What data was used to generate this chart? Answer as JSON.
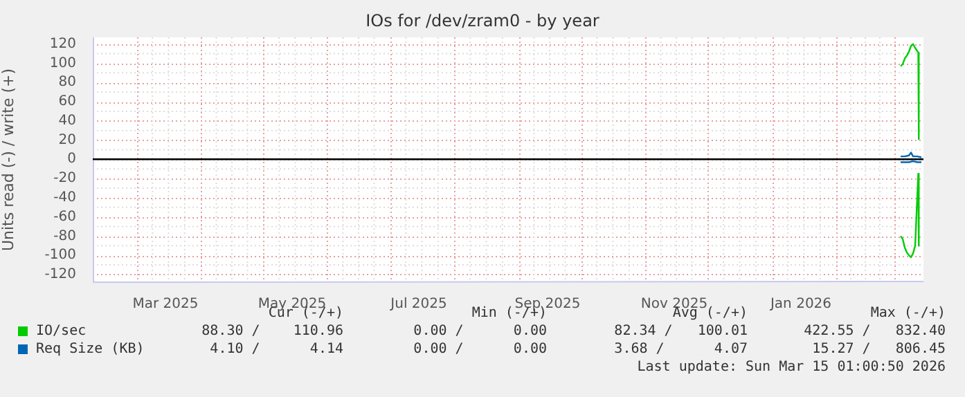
{
  "chart_data": {
    "type": "line",
    "title": "IOs for /dev/zram0 - by year",
    "ylabel": "Units read (-) / write (+)",
    "xlim": [
      "2025-02-08",
      "2026-03-15"
    ],
    "xticks": [
      {
        "value": "2025-03-01",
        "label": null
      },
      {
        "value": "2025-03-15",
        "label": "Mar 2025"
      },
      {
        "value": "2025-04-01",
        "label": null
      },
      {
        "value": "2025-05-01",
        "label": null
      },
      {
        "value": "2025-05-15",
        "label": "May 2025"
      },
      {
        "value": "2025-06-01",
        "label": null
      },
      {
        "value": "2025-07-01",
        "label": null
      },
      {
        "value": "2025-07-15",
        "label": "Jul 2025"
      },
      {
        "value": "2025-08-01",
        "label": null
      },
      {
        "value": "2025-09-01",
        "label": null
      },
      {
        "value": "2025-09-15",
        "label": "Sep 2025"
      },
      {
        "value": "2025-10-01",
        "label": null
      },
      {
        "value": "2025-11-01",
        "label": null
      },
      {
        "value": "2025-11-15",
        "label": "Nov 2025"
      },
      {
        "value": "2025-12-01",
        "label": null
      },
      {
        "value": "2026-01-01",
        "label": null
      },
      {
        "value": "2026-01-15",
        "label": "Jan 2026"
      },
      {
        "value": "2026-02-01",
        "label": null
      },
      {
        "value": "2026-03-01",
        "label": null
      }
    ],
    "ylim": [
      -128,
      127
    ],
    "yticks": [
      -120,
      -100,
      -80,
      -60,
      -40,
      -20,
      0,
      20,
      40,
      60,
      80,
      100,
      120
    ],
    "grid": true,
    "legend": "bottom left",
    "marker": "none",
    "line_style": "solid",
    "ref_lines": [
      {
        "axis": "y",
        "value": 0,
        "color": "#000000"
      }
    ],
    "series": [
      {
        "name": "IO/sec",
        "color": "#00cc00",
        "x": [
          "2026-03-04",
          "2026-03-05",
          "2026-03-06",
          "2026-03-07",
          "2026-03-08",
          "2026-03-09",
          "2026-03-10",
          "2026-03-11",
          "2026-03-12T12:00",
          "2026-03-12T18:00"
        ],
        "values": [
          97,
          99,
          105,
          108,
          112,
          118,
          120,
          116,
          111,
          21
        ]
      },
      {
        "color": "#00cc00",
        "x": [
          "2026-03-04",
          "2026-03-05",
          "2026-03-06",
          "2026-03-07",
          "2026-03-08",
          "2026-03-09",
          "2026-03-10",
          "2026-03-11",
          "2026-03-12T12:00",
          "2026-03-12T18:00"
        ],
        "values": [
          -80,
          -83,
          -92,
          -97,
          -100,
          -102,
          -98,
          -90,
          -15,
          -90
        ]
      },
      {
        "name": "Req Size (KB)",
        "color": "#0066b3",
        "x": [
          "2026-03-04",
          "2026-03-06",
          "2026-03-08",
          "2026-03-09",
          "2026-03-10",
          "2026-03-12",
          "2026-03-14"
        ],
        "values": [
          3,
          3,
          4,
          7,
          3,
          3,
          2
        ]
      },
      {
        "color": "#0066b3",
        "x": [
          "2026-03-04",
          "2026-03-06",
          "2026-03-08",
          "2026-03-10",
          "2026-03-12",
          "2026-03-14"
        ],
        "values": [
          -3,
          -3,
          -3,
          -2,
          -3,
          -3
        ]
      }
    ],
    "annotations": [
      "Cur (-/+)",
      "Min (-/+)",
      "Avg (-/+)",
      "Max (-/+)",
      "88.30 /    110.96",
      "0.00 /      0.00",
      "82.34 /   100.01",
      "422.55 /   832.40",
      "4.10 /      4.14",
      "0.00 /      0.00",
      "3.68 /      4.07",
      "15.27 /   806.45",
      "Last update: Sun Mar 15 01:00:50 2026"
    ]
  }
}
